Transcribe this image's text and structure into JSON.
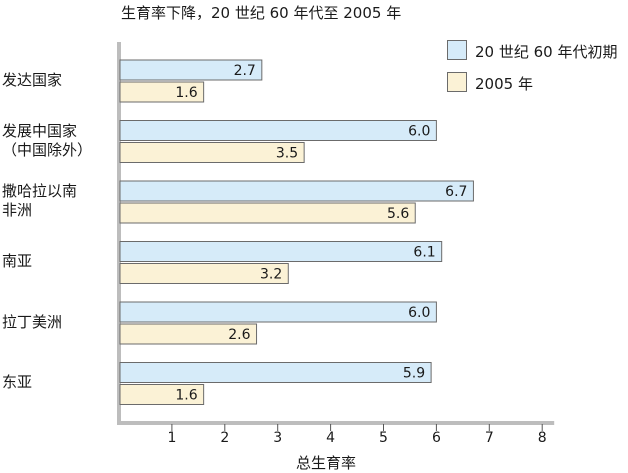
{
  "chart_data": {
    "type": "bar",
    "orientation": "horizontal",
    "title": "生育率下降，20 世纪 60 年代至 2005 年",
    "xlabel": "总生育率",
    "ylabel": "",
    "xlim": [
      0,
      8
    ],
    "xticks": [
      "1",
      "2",
      "3",
      "4",
      "5",
      "6",
      "7",
      "8"
    ],
    "categories": [
      [
        "发达国家"
      ],
      [
        "发展中国家",
        "（中国除外）"
      ],
      [
        "撒哈拉以南",
        "非洲"
      ],
      [
        "南亚"
      ],
      [
        "拉丁美洲"
      ],
      [
        "东亚"
      ]
    ],
    "series": [
      {
        "name": "20 世纪 60 年代初期",
        "values": [
          2.7,
          6.0,
          6.7,
          6.1,
          6.0,
          5.9
        ],
        "labels": [
          "2.7",
          "6.0",
          "6.7",
          "6.1",
          "6.0",
          "5.9"
        ],
        "color": "#d6ebf9"
      },
      {
        "name": "2005 年",
        "values": [
          1.6,
          3.5,
          5.6,
          3.2,
          2.6,
          1.6
        ],
        "labels": [
          "1.6",
          "3.5",
          "5.6",
          "3.2",
          "2.6",
          "1.6"
        ],
        "color": "#fbf2d6"
      }
    ],
    "legend_position": "top-right",
    "grid": false,
    "bar_border_color": "#6b6b6b",
    "axis_color": "#bdbdbd"
  }
}
